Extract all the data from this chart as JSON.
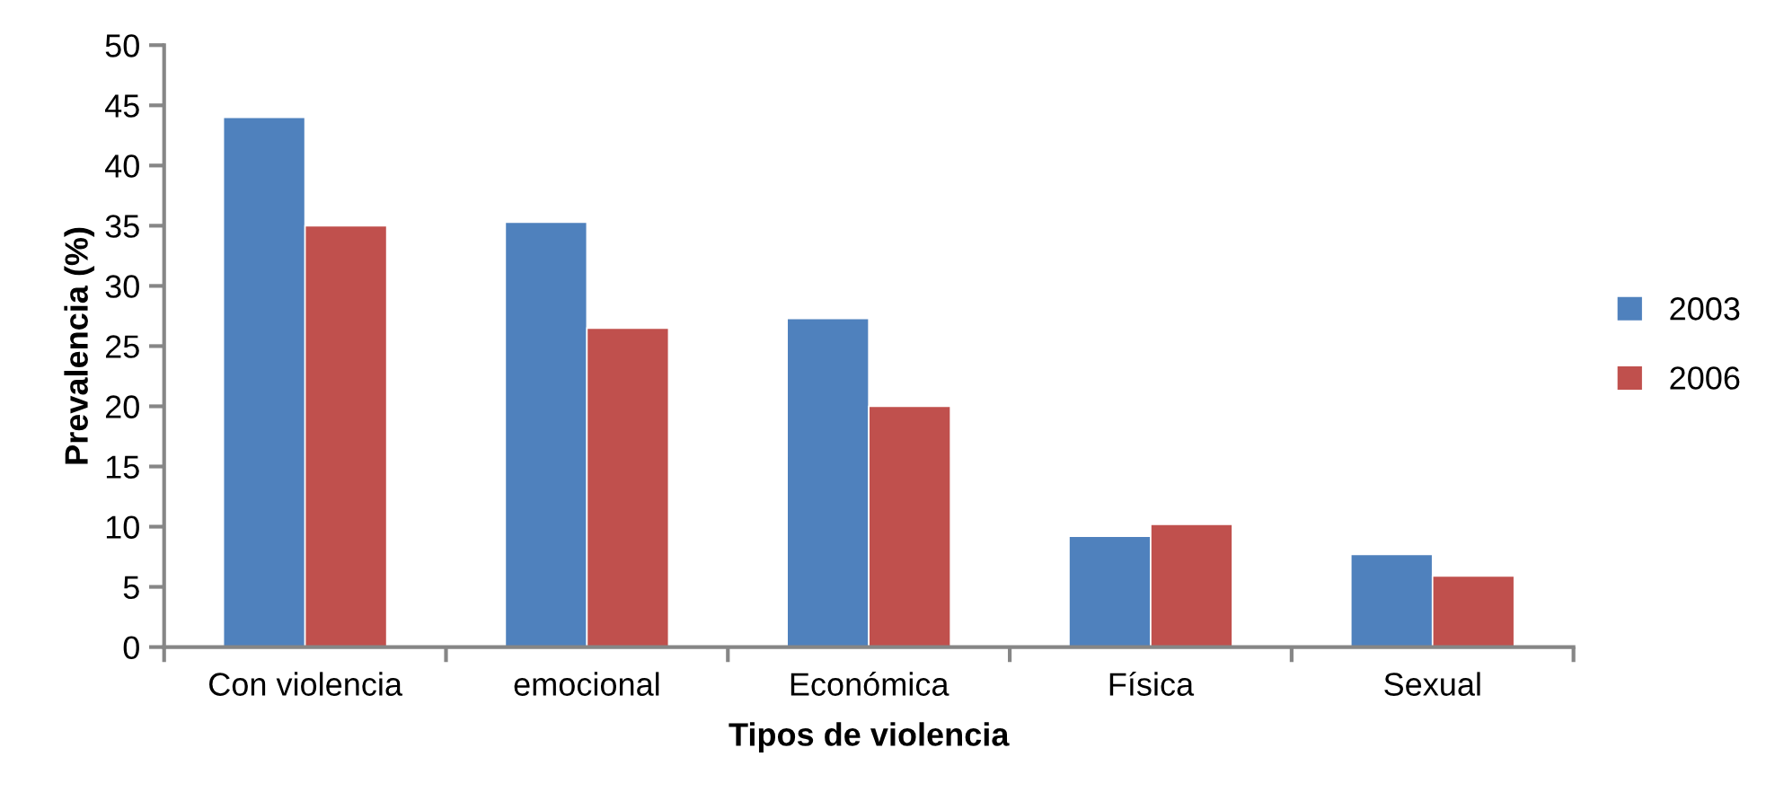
{
  "chart_data": {
    "type": "bar",
    "xlabel": "Tipos de violencia",
    "ylabel": "Prevalencia (%)",
    "categories": [
      "Con violencia",
      "emocional",
      "Económica",
      "Física",
      "Sexual"
    ],
    "series": [
      {
        "name": "2003",
        "color": "#4f81bd",
        "values": [
          44.0,
          35.3,
          27.3,
          9.2,
          7.7
        ]
      },
      {
        "name": "2006",
        "color": "#c0504d",
        "values": [
          35.0,
          26.5,
          20.0,
          10.2,
          5.9
        ]
      }
    ],
    "ylim": [
      0,
      50
    ],
    "yticks": [
      0,
      5,
      10,
      15,
      20,
      25,
      30,
      35,
      40,
      45,
      50
    ],
    "grid": false,
    "legend": "right"
  }
}
